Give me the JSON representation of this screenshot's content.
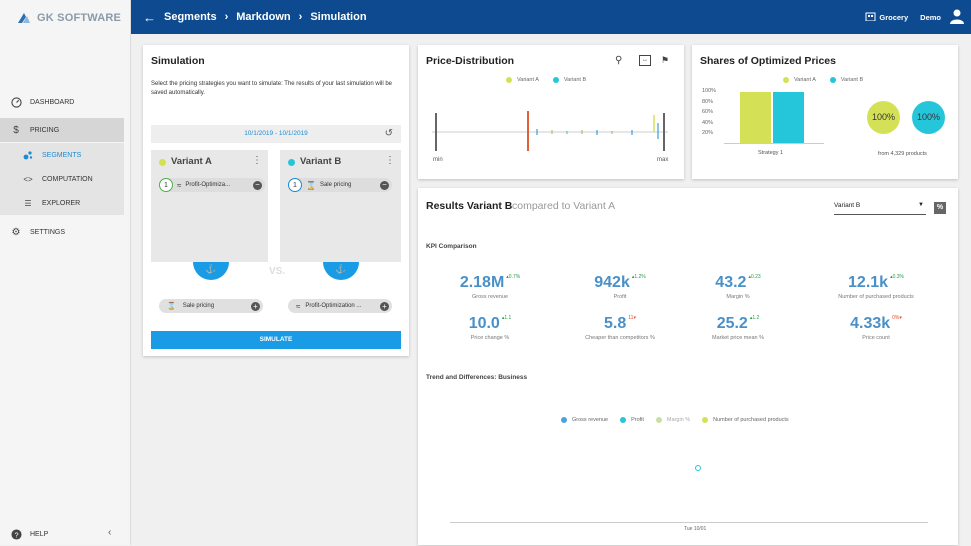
{
  "brand": {
    "name": "GK SOFTWARE"
  },
  "sidebar": {
    "items": [
      {
        "label": "DASHBOARD",
        "icon": "speedometer-icon"
      },
      {
        "label": "PRICING",
        "icon": "dollar-icon"
      },
      {
        "label": "SEGMENTS",
        "icon": "segments-icon"
      },
      {
        "label": "COMPUTATION",
        "icon": "code-icon"
      },
      {
        "label": "EXPLORER",
        "icon": "list-icon"
      },
      {
        "label": "SETTINGS",
        "icon": "gear-icon"
      }
    ],
    "help_label": "HELP"
  },
  "topbar": {
    "crumbs": [
      "Segments",
      "Markdown",
      "Simulation"
    ],
    "store": "Grocery",
    "user": "Demo"
  },
  "simulation": {
    "title": "Simulation",
    "description": "Select the pricing strategies you want to simulate: The results of your last simulation will be saved automatically.",
    "date_range": "10/1/2019 - 10/1/2019",
    "variant_a": {
      "label": "Variant A",
      "color": "#d4e157",
      "strategy": "Profit-Optimiza...",
      "rank": "1",
      "available": "Sale pricing"
    },
    "variant_b": {
      "label": "Variant B",
      "color": "#26c6da",
      "strategy": "Sale pricing",
      "rank": "1",
      "available": "Profit-Optimization ..."
    },
    "vs_label": "VS.",
    "simulate_button": "SIMULATE"
  },
  "price_distribution": {
    "title": "Price-Distribution",
    "legend": [
      "Variant A",
      "Variant B"
    ],
    "min_label": "min",
    "max_label": "max"
  },
  "shares": {
    "title": "Shares of Optimized Prices",
    "legend": [
      "Variant A",
      "Variant B"
    ],
    "y_ticks": [
      "100%",
      "80%",
      "60%",
      "40%",
      "20%"
    ],
    "x_label": "Strategy 1",
    "circle_a": "100%",
    "circle_b": "100%",
    "footnote": "from 4,329 products"
  },
  "results": {
    "title": "Results Variant B",
    "subtitle": "compared to Variant A",
    "compare_select": "Variant B",
    "percent_toggle": "%",
    "kpi_section": "KPI Comparison",
    "kpis": [
      {
        "value": "2.18M",
        "delta": "0.7%",
        "dir": "up",
        "label": "Gross revenue"
      },
      {
        "value": "942k",
        "delta": "1.2%",
        "dir": "up",
        "label": "Profit"
      },
      {
        "value": "43.2",
        "delta": "0.23",
        "dir": "up",
        "label": "Margin %"
      },
      {
        "value": "12.1k",
        "delta": "0.3%",
        "dir": "up",
        "label": "Number of purchased products"
      },
      {
        "value": "10.0",
        "delta": "1.1",
        "dir": "up",
        "label": "Price change %"
      },
      {
        "value": "5.8",
        "delta": "11",
        "dir": "down",
        "label": "Cheaper than competitors %"
      },
      {
        "value": "25.2",
        "delta": "1.2",
        "dir": "up",
        "label": "Market price mean %"
      },
      {
        "value": "4.33k",
        "delta": "0%",
        "dir": "none",
        "label": "Price count"
      }
    ],
    "trend_title": "Trend and Differences: Business",
    "trend_legend": [
      {
        "label": "Gross revenue",
        "color": "#4aa3df"
      },
      {
        "label": "Profit",
        "color": "#26c6da"
      },
      {
        "label": "Margin %",
        "color": "#c5e1a5"
      },
      {
        "label": "Number of purchased products",
        "color": "#d4e157"
      }
    ],
    "trend_x_label": "Tue 10/01"
  },
  "colors": {
    "topbar": "#0d4a8f",
    "accent": "#1a9be6",
    "variant_a": "#d4e157",
    "variant_b": "#26c6da"
  }
}
